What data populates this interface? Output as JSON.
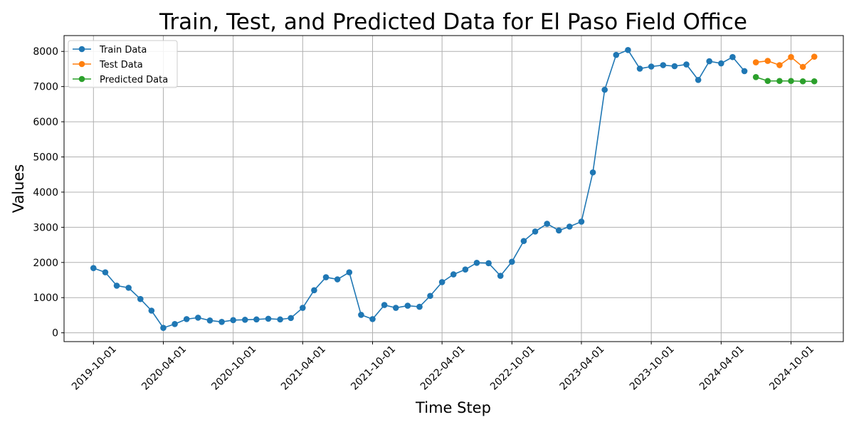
{
  "chart_data": {
    "type": "line",
    "title": "Train, Test, and Predicted Data for El Paso Field Office",
    "xlabel": "Time Step",
    "ylabel": "Values",
    "x_ticks": [
      "2019-10-01",
      "2020-04-01",
      "2020-10-01",
      "2021-04-01",
      "2021-10-01",
      "2022-04-01",
      "2022-10-01",
      "2023-04-01",
      "2023-10-01",
      "2024-04-01",
      "2024-10-01"
    ],
    "y_ticks": [
      0,
      1000,
      2000,
      3000,
      4000,
      5000,
      6000,
      7000,
      8000
    ],
    "ylim": [
      -250,
      8450
    ],
    "xlim": [
      "2019-07-16",
      "2025-02-15"
    ],
    "grid": true,
    "legend_position": "upper-left",
    "series": [
      {
        "name": "Train Data",
        "color": "#1f77b4",
        "x": [
          "2019-10-01",
          "2019-11-01",
          "2019-12-01",
          "2020-01-01",
          "2020-02-01",
          "2020-03-01",
          "2020-04-01",
          "2020-05-01",
          "2020-06-01",
          "2020-07-01",
          "2020-08-01",
          "2020-09-01",
          "2020-10-01",
          "2020-11-01",
          "2020-12-01",
          "2021-01-01",
          "2021-02-01",
          "2021-03-01",
          "2021-04-01",
          "2021-05-01",
          "2021-06-01",
          "2021-07-01",
          "2021-08-01",
          "2021-09-01",
          "2021-10-01",
          "2021-11-01",
          "2021-12-01",
          "2022-01-01",
          "2022-02-01",
          "2022-03-01",
          "2022-04-01",
          "2022-05-01",
          "2022-06-01",
          "2022-07-01",
          "2022-08-01",
          "2022-09-01",
          "2022-10-01",
          "2022-11-01",
          "2022-12-01",
          "2023-01-01",
          "2023-02-01",
          "2023-03-01",
          "2023-04-01",
          "2023-05-01",
          "2023-06-01",
          "2023-07-01",
          "2023-08-01",
          "2023-09-01",
          "2023-10-01",
          "2023-11-01",
          "2023-12-01",
          "2024-01-01",
          "2024-02-01",
          "2024-03-01",
          "2024-04-01",
          "2024-05-01",
          "2024-06-01"
        ],
        "values": [
          1840,
          1720,
          1340,
          1280,
          960,
          630,
          140,
          250,
          390,
          430,
          350,
          310,
          360,
          370,
          380,
          400,
          380,
          420,
          710,
          1210,
          1580,
          1520,
          1720,
          510,
          390,
          790,
          710,
          770,
          740,
          1050,
          1440,
          1660,
          1800,
          1990,
          1980,
          1620,
          2020,
          2610,
          2880,
          3100,
          2910,
          3020,
          3160,
          4560,
          6910,
          7900,
          8040,
          7510,
          7570,
          7610,
          7580,
          7630,
          7190,
          7720,
          7660,
          7840,
          7440
        ]
      },
      {
        "name": "Test Data",
        "color": "#ff7f0e",
        "x": [
          "2024-07-01",
          "2024-08-01",
          "2024-09-01",
          "2024-10-01",
          "2024-11-01",
          "2024-12-01"
        ],
        "values": [
          7690,
          7730,
          7610,
          7840,
          7560,
          7850
        ]
      },
      {
        "name": "Predicted Data",
        "color": "#2ca02c",
        "x": [
          "2024-07-01",
          "2024-08-01",
          "2024-09-01",
          "2024-10-01",
          "2024-11-01",
          "2024-12-01"
        ],
        "values": [
          7270,
          7160,
          7160,
          7160,
          7150,
          7150
        ]
      }
    ]
  }
}
